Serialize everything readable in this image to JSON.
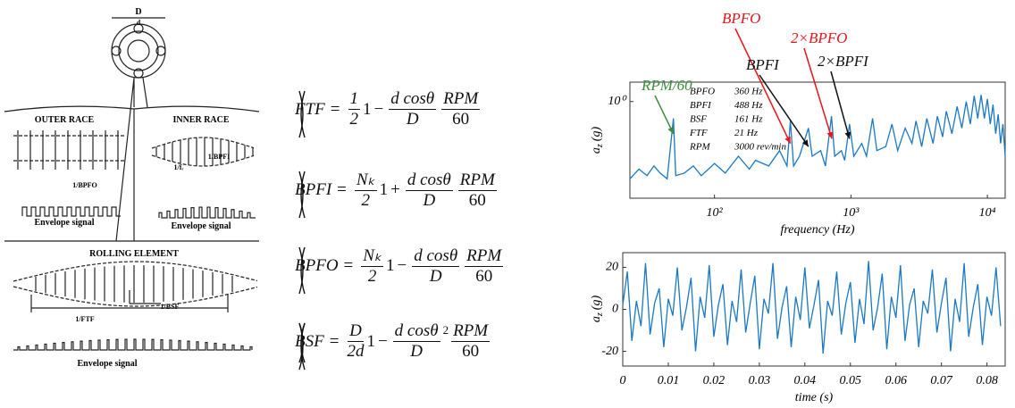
{
  "diagram": {
    "dim_outer": "D",
    "dim_inner": "d",
    "outer_race": {
      "title": "OUTER RACE",
      "period": "1/BPFO",
      "signal": "Envelope signal"
    },
    "inner_race": {
      "title": "INNER RACE",
      "period": "1/BPFI",
      "shaft": "1/fᵣ",
      "signal": "Envelope signal"
    },
    "rolling_element": {
      "title": "ROLLING ELEMENT",
      "period_ftf": "1/FTF",
      "period_bsf": "1/BSF",
      "signal": "Envelope signal"
    }
  },
  "equations": [
    {
      "lhs": "FTF",
      "eq": "=",
      "coef_num": "1",
      "coef_den": "2",
      "one": "1",
      "sign": "−",
      "num": "d cosθ",
      "den": "D",
      "rpm": "RPM",
      "rpm_den": "60"
    },
    {
      "lhs": "BPFI",
      "eq": "=",
      "coef_num": "Nₖ",
      "coef_den": "2",
      "one": "1",
      "sign": "+",
      "num": "d cosθ",
      "den": "D",
      "rpm": "RPM",
      "rpm_den": "60"
    },
    {
      "lhs": "BPFO",
      "eq": "=",
      "coef_num": "Nₖ",
      "coef_den": "2",
      "one": "1",
      "sign": "−",
      "num": "d cosθ",
      "den": "D",
      "rpm": "RPM",
      "rpm_den": "60"
    },
    {
      "lhs": "BSF",
      "eq": "=",
      "coef_num": "D",
      "coef_den": "2d",
      "one": "1",
      "sign": "−",
      "num": "d cosθ",
      "den": "D",
      "power": "2",
      "rpm": "RPM",
      "rpm_den": "60"
    }
  ],
  "chart_data": [
    {
      "type": "line",
      "xlabel": "frequency (Hz)",
      "ylabel_symbol": "a",
      "ylabel_sub": "z",
      "ylabel": "(g)",
      "color": "#1b78c2",
      "xscale": "log",
      "yscale": "log",
      "xlim": [
        24,
        13500
      ],
      "ylim": [
        0.001,
        4
      ],
      "xticks": [
        {
          "value": 100,
          "label": "10²"
        },
        {
          "value": 1000,
          "label": "10³"
        },
        {
          "value": 10000,
          "label": "10⁴"
        }
      ],
      "yticks": [
        {
          "value": 1,
          "label": "10⁰"
        }
      ],
      "x": [
        24,
        28,
        32,
        36,
        40,
        45,
        50,
        52,
        60,
        70,
        80,
        100,
        120,
        150,
        180,
        200,
        250,
        300,
        340,
        360,
        380,
        420,
        488,
        520,
        600,
        650,
        720,
        760,
        850,
        900,
        976,
        1050,
        1200,
        1300,
        1440,
        1550,
        1800,
        2000,
        2200,
        2500,
        2800,
        3000,
        3300,
        3600,
        4000,
        4300,
        4700,
        5000,
        5500,
        6000,
        6500,
        7000,
        7500,
        8000,
        8500,
        9000,
        9500,
        10000,
        10500,
        11000,
        11500,
        12000,
        12500,
        13000,
        13500
      ],
      "values": [
        0.004,
        0.008,
        0.005,
        0.01,
        0.006,
        0.004,
        0.3,
        0.005,
        0.006,
        0.01,
        0.005,
        0.012,
        0.006,
        0.02,
        0.008,
        0.015,
        0.01,
        0.03,
        0.01,
        0.25,
        0.01,
        0.02,
        0.15,
        0.02,
        0.03,
        0.01,
        0.35,
        0.02,
        0.03,
        0.015,
        0.2,
        0.02,
        0.05,
        0.02,
        0.3,
        0.03,
        0.04,
        0.2,
        0.03,
        0.15,
        0.05,
        0.25,
        0.04,
        0.3,
        0.05,
        0.35,
        0.08,
        0.5,
        0.1,
        0.7,
        0.15,
        1.0,
        0.2,
        1.5,
        0.3,
        1.6,
        0.3,
        1.2,
        0.2,
        0.8,
        0.1,
        0.4,
        0.05,
        0.2,
        0.02
      ],
      "info": [
        [
          "BPFO",
          "360 Hz"
        ],
        [
          "BPFI",
          "488 Hz"
        ],
        [
          "BSF",
          "161 Hz"
        ],
        [
          "FTF",
          "21 Hz"
        ],
        [
          "RPM",
          "3000 rev/min"
        ]
      ],
      "annotations": [
        {
          "text": "RPM/60",
          "color": "#3c8c3c",
          "x": 50,
          "y": 0.1
        },
        {
          "text": "BPFO",
          "color": "#e8141c",
          "x": 360,
          "y": 0.05
        },
        {
          "text": "2×BPFO",
          "color": "#e8141c",
          "x": 725,
          "y": 0.07
        },
        {
          "text": "BPFI",
          "color": "#111111",
          "x": 488,
          "y": 0.04
        },
        {
          "text": "2×BPFI",
          "color": "#111111",
          "x": 976,
          "y": 0.07
        }
      ]
    },
    {
      "type": "line",
      "xlabel": "time (s)",
      "ylabel_symbol": "a",
      "ylabel_sub": "z",
      "ylabel": "(g)",
      "color": "#1b78c2",
      "xlim": [
        0,
        0.084
      ],
      "ylim": [
        -27,
        27
      ],
      "xticks": [
        0,
        0.01,
        0.02,
        0.03,
        0.04,
        0.05,
        0.06,
        0.07,
        0.08
      ],
      "yticks": [
        -20,
        0,
        20
      ],
      "x": [
        0,
        0.001,
        0.002,
        0.003,
        0.004,
        0.005,
        0.006,
        0.007,
        0.008,
        0.009,
        0.01,
        0.011,
        0.012,
        0.013,
        0.014,
        0.015,
        0.016,
        0.017,
        0.018,
        0.019,
        0.02,
        0.021,
        0.022,
        0.023,
        0.024,
        0.025,
        0.026,
        0.027,
        0.028,
        0.029,
        0.03,
        0.031,
        0.032,
        0.033,
        0.034,
        0.035,
        0.036,
        0.037,
        0.038,
        0.039,
        0.04,
        0.041,
        0.042,
        0.043,
        0.044,
        0.045,
        0.046,
        0.047,
        0.048,
        0.049,
        0.05,
        0.051,
        0.052,
        0.053,
        0.054,
        0.055,
        0.056,
        0.057,
        0.058,
        0.059,
        0.06,
        0.061,
        0.062,
        0.063,
        0.064,
        0.065,
        0.066,
        0.067,
        0.068,
        0.069,
        0.07,
        0.071,
        0.072,
        0.073,
        0.074,
        0.075,
        0.076,
        0.077,
        0.078,
        0.079,
        0.08,
        0.081,
        0.082,
        0.083
      ],
      "values": [
        2,
        18,
        -15,
        4,
        -8,
        22,
        -12,
        3,
        10,
        -18,
        5,
        -3,
        20,
        -10,
        1,
        15,
        -20,
        6,
        -4,
        21,
        -13,
        2,
        12,
        -17,
        4,
        -6,
        19,
        -11,
        3,
        16,
        -19,
        5,
        -2,
        22,
        -14,
        1,
        11,
        -18,
        6,
        -5,
        20,
        -9,
        2,
        14,
        -21,
        4,
        -3,
        18,
        -12,
        3,
        13,
        -16,
        5,
        -7,
        23,
        -10,
        1,
        17,
        -19,
        6,
        -4,
        21,
        -15,
        2,
        10,
        -18,
        4,
        -2,
        19,
        -11,
        3,
        15,
        -20,
        5,
        -6,
        22,
        -13,
        1,
        12,
        -17,
        6,
        -3,
        20,
        -8
      ]
    }
  ]
}
